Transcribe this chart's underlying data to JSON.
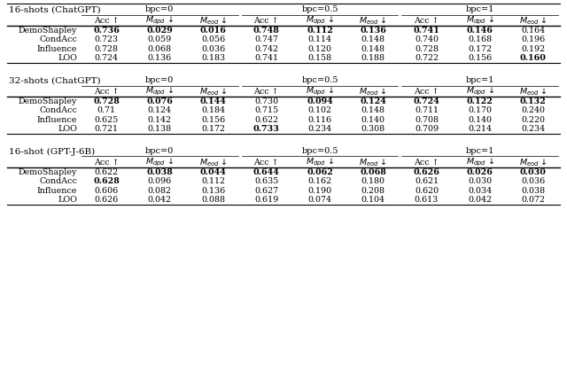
{
  "tables": [
    {
      "title": "16-shots (ChatGPT)",
      "methods": [
        "DemoShapley",
        "CondAcc",
        "Influence",
        "LOO"
      ],
      "bpc_headers": [
        "bpc=0",
        "bpc=0.5",
        "bpc=1"
      ],
      "data": [
        [
          "0.736",
          "0.029",
          "0.016",
          "0.748",
          "0.112",
          "0.136",
          "0.741",
          "0.146",
          "0.164"
        ],
        [
          "0.723",
          "0.059",
          "0.056",
          "0.747",
          "0.114",
          "0.148",
          "0.740",
          "0.168",
          "0.196"
        ],
        [
          "0.728",
          "0.068",
          "0.036",
          "0.742",
          "0.120",
          "0.148",
          "0.728",
          "0.172",
          "0.192"
        ],
        [
          "0.724",
          "0.136",
          "0.183",
          "0.741",
          "0.158",
          "0.188",
          "0.722",
          "0.156",
          "0.160"
        ]
      ],
      "bold": [
        [
          true,
          true,
          true,
          true,
          true,
          true,
          true,
          true,
          false
        ],
        [
          false,
          false,
          false,
          false,
          false,
          false,
          false,
          false,
          false
        ],
        [
          false,
          false,
          false,
          false,
          false,
          false,
          false,
          false,
          false
        ],
        [
          false,
          false,
          false,
          false,
          false,
          false,
          false,
          false,
          true
        ]
      ]
    },
    {
      "title": "32-shots (ChatGPT)",
      "methods": [
        "DemoShapley",
        "CondAcc",
        "Influence",
        "LOO"
      ],
      "bpc_headers": [
        "bpc=0",
        "bpc=0.5",
        "bpc=1"
      ],
      "data": [
        [
          "0.728",
          "0.076",
          "0.144",
          "0.730",
          "0.094",
          "0.124",
          "0.724",
          "0.122",
          "0.132"
        ],
        [
          "0.71",
          "0.124",
          "0.184",
          "0.715",
          "0.102",
          "0.148",
          "0.711",
          "0.170",
          "0.240"
        ],
        [
          "0.625",
          "0.142",
          "0.156",
          "0.622",
          "0.116",
          "0.140",
          "0.708",
          "0.140",
          "0.220"
        ],
        [
          "0.721",
          "0.138",
          "0.172",
          "0.733",
          "0.234",
          "0.308",
          "0.709",
          "0.214",
          "0.234"
        ]
      ],
      "bold": [
        [
          true,
          true,
          true,
          false,
          true,
          true,
          true,
          true,
          true
        ],
        [
          false,
          false,
          false,
          false,
          false,
          false,
          false,
          false,
          false
        ],
        [
          false,
          false,
          false,
          false,
          false,
          false,
          false,
          false,
          false
        ],
        [
          false,
          false,
          false,
          true,
          false,
          false,
          false,
          false,
          false
        ]
      ]
    },
    {
      "title": "16-shot (GPT-J-6B)",
      "methods": [
        "DemoShapley",
        "CondAcc",
        "Influence",
        "LOO"
      ],
      "bpc_headers": [
        "bpc=0",
        "bpc=0.5",
        "bpc=1"
      ],
      "data": [
        [
          "0.622",
          "0.038",
          "0.044",
          "0.644",
          "0.062",
          "0.068",
          "0.626",
          "0.026",
          "0.030"
        ],
        [
          "0.628",
          "0.096",
          "0.112",
          "0.635",
          "0.162",
          "0.180",
          "0.621",
          "0.030",
          "0.036"
        ],
        [
          "0.606",
          "0.082",
          "0.136",
          "0.627",
          "0.190",
          "0.208",
          "0.620",
          "0.034",
          "0.038"
        ],
        [
          "0.626",
          "0.042",
          "0.088",
          "0.619",
          "0.074",
          "0.104",
          "0.613",
          "0.042",
          "0.072"
        ]
      ],
      "bold": [
        [
          false,
          true,
          true,
          true,
          true,
          true,
          true,
          true,
          true
        ],
        [
          true,
          false,
          false,
          false,
          false,
          false,
          false,
          false,
          false
        ],
        [
          false,
          false,
          false,
          false,
          false,
          false,
          false,
          false,
          false
        ],
        [
          false,
          false,
          false,
          false,
          false,
          false,
          false,
          false,
          false
        ]
      ]
    }
  ],
  "background_color": "#ffffff",
  "text_color": "#000000",
  "font_size": 6.8,
  "title_font_size": 7.5,
  "header_font_size": 7.0
}
